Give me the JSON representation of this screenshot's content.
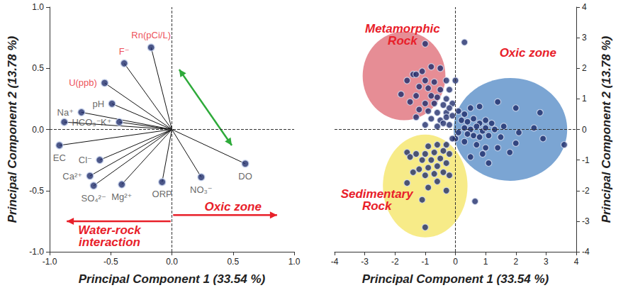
{
  "chart_data": [
    {
      "type": "biplot",
      "xlabel": "Principal Component 1 (33.54 %)",
      "ylabel": "Principal Component 2 (13.78 %)",
      "xlim": [
        -1,
        1
      ],
      "ylim": [
        -1,
        1
      ],
      "xticks": [
        {
          "value": -1,
          "label": "-1.0"
        },
        {
          "value": -0.5,
          "label": "-0.5"
        },
        {
          "value": 0,
          "label": "0.0"
        },
        {
          "value": 0.5,
          "label": "0.5"
        },
        {
          "value": 1,
          "label": "1.0"
        }
      ],
      "yticks": [
        {
          "value": -1,
          "label": "-1.0"
        },
        {
          "value": -0.5,
          "label": "-0.5"
        },
        {
          "value": 0,
          "label": "0.0"
        },
        {
          "value": 0.5,
          "label": "0.5"
        },
        {
          "value": 1,
          "label": "1.0"
        }
      ],
      "grid": false,
      "color": "#1f2d6b",
      "loadings": [
        {
          "name": "Rn(pCi/L)",
          "x": -0.17,
          "y": 0.67,
          "color": "#e8202a"
        },
        {
          "name": "F⁻",
          "x": -0.39,
          "y": 0.54,
          "color": "#e8202a"
        },
        {
          "name": "U(ppb)",
          "x": -0.55,
          "y": 0.38,
          "color": "#e8202a"
        },
        {
          "name": "pH",
          "x": -0.49,
          "y": 0.21,
          "color": "#404040"
        },
        {
          "name": "Na⁺",
          "x": -0.74,
          "y": 0.14,
          "color": "#404040"
        },
        {
          "name": "K⁺",
          "x": -0.43,
          "y": 0.06,
          "color": "#404040"
        },
        {
          "name": "HCO₃⁻",
          "x": -0.88,
          "y": 0.06,
          "color": "#404040"
        },
        {
          "name": "EC",
          "x": -0.92,
          "y": -0.13,
          "color": "#404040"
        },
        {
          "name": "Cl⁻",
          "x": -0.59,
          "y": -0.25,
          "color": "#404040"
        },
        {
          "name": "Ca²⁺",
          "x": -0.67,
          "y": -0.38,
          "color": "#404040"
        },
        {
          "name": "SO₄²⁻",
          "x": -0.64,
          "y": -0.46,
          "color": "#404040"
        },
        {
          "name": "Mg²⁺",
          "x": -0.41,
          "y": -0.45,
          "color": "#404040"
        },
        {
          "name": "ORP",
          "x": -0.08,
          "y": -0.43,
          "color": "#404040"
        },
        {
          "name": "NO₃⁻",
          "x": 0.24,
          "y": -0.39,
          "color": "#404040"
        },
        {
          "name": "DO",
          "x": 0.6,
          "y": -0.28,
          "color": "#404040"
        }
      ],
      "arrows": [
        {
          "from": [
            0.06,
            0.49
          ],
          "to": [
            0.49,
            -0.13
          ],
          "color": "#2eaa3a",
          "marker": "double"
        },
        {
          "from": [
            0.01,
            -0.7
          ],
          "to": [
            0.86,
            -0.7
          ],
          "color": "#e8202a",
          "marker": "single"
        },
        {
          "from": [
            -0.01,
            -0.75
          ],
          "to": [
            -0.86,
            -0.75
          ],
          "color": "#e8202a",
          "marker": "single"
        }
      ],
      "annotations": [
        {
          "text": "Oxic zone",
          "x": 0.5,
          "y": -0.63,
          "color": "#e8202a"
        },
        {
          "text": "Water-rock\ninteraction",
          "x": -0.51,
          "y": -0.87,
          "color": "#e8202a"
        }
      ]
    },
    {
      "type": "scatter",
      "xlabel": "Principal Component 1 (33.54 %)",
      "ylabel": "Principal Component 2 (13.78 %)",
      "xlim": [
        -4,
        4
      ],
      "ylim": [
        -4,
        4
      ],
      "xticks": [
        -4,
        -3,
        -2,
        -1,
        0,
        1,
        2,
        3,
        4
      ],
      "yticks": [
        -4,
        -3,
        -2,
        -1,
        0,
        1,
        2,
        3,
        4
      ],
      "grid": false,
      "color": "#1f2d6b",
      "x": [
        -1.0,
        0.3,
        -1.4,
        -1.3,
        -1.1,
        -0.8,
        -0.5,
        -1.6,
        -1.0,
        -0.7,
        -0.3,
        0.0,
        -1.2,
        -0.9,
        -0.5,
        -0.2,
        -1.8,
        -1.3,
        -0.8,
        -0.6,
        -0.3,
        -1.5,
        -1.0,
        -0.7,
        -0.4,
        -0.1,
        -1.2,
        -0.9,
        -0.6,
        -0.3,
        -0.2,
        -1.3,
        -0.8,
        -0.5,
        -0.3,
        -0.1,
        -1.0,
        -0.6,
        -0.4,
        -0.2,
        0.1,
        0.3,
        0.5,
        0.8,
        1.4,
        2.0,
        2.8,
        0.2,
        0.4,
        0.6,
        0.8,
        1.0,
        1.2,
        0.3,
        0.5,
        0.7,
        0.9,
        1.0,
        1.3,
        1.6,
        0.1,
        0.4,
        0.6,
        0.8,
        1.1,
        1.5,
        2.1,
        2.6,
        2.9,
        3.6,
        0.3,
        0.7,
        1.0,
        1.4,
        1.8,
        0.5,
        0.9,
        1.1,
        2.0,
        0.0,
        -0.1,
        -0.3,
        -0.6,
        -0.9,
        -0.4,
        -0.7,
        -1.0,
        -1.3,
        -1.6,
        -0.2,
        -0.5,
        -0.8,
        -1.1,
        -1.5,
        -0.3,
        -0.6,
        -0.9,
        -1.2,
        -0.4,
        -0.7,
        -1.0,
        -1.4,
        -0.2,
        -0.6,
        -1.6,
        -0.9,
        -0.3,
        -1.1,
        0.65,
        -1.0
      ],
      "y": [
        2.8,
        2.85,
        1.8,
        1.8,
        1.9,
        2.05,
        2.0,
        1.6,
        1.6,
        1.55,
        1.6,
        1.6,
        1.4,
        1.35,
        1.3,
        1.3,
        1.15,
        1.1,
        1.1,
        1.05,
        1.0,
        0.9,
        0.85,
        0.85,
        0.8,
        0.85,
        0.65,
        0.6,
        0.55,
        0.55,
        0.7,
        0.4,
        0.35,
        0.3,
        0.4,
        0.45,
        0.15,
        0.1,
        0.2,
        0.15,
        0.6,
        0.5,
        0.7,
        0.75,
        0.9,
        0.7,
        0.55,
        0.3,
        0.25,
        0.35,
        0.2,
        0.3,
        0.2,
        0.05,
        0.0,
        0.1,
        -0.05,
        0.05,
        0.0,
        0.1,
        -0.1,
        -0.15,
        -0.2,
        -0.25,
        -0.2,
        -0.25,
        -0.1,
        0.05,
        -0.3,
        -0.5,
        -0.4,
        -0.5,
        -0.6,
        -0.6,
        -0.75,
        -0.9,
        -0.8,
        -1.1,
        -0.45,
        -0.3,
        -0.3,
        -0.5,
        -0.5,
        -0.55,
        -0.7,
        -0.75,
        -0.8,
        -0.8,
        -0.75,
        -0.8,
        -0.95,
        -1.0,
        -1.0,
        -0.9,
        -1.1,
        -1.2,
        -1.25,
        -1.3,
        -1.4,
        -1.45,
        -1.5,
        -1.4,
        -1.5,
        -1.7,
        -1.75,
        -1.9,
        -2.0,
        -2.3,
        -2.35,
        -3.2
      ],
      "regions": [
        {
          "label": "Metamorphic\nRock",
          "color": "#e0707b",
          "center": [
            -1.7,
            1.75
          ],
          "radii": [
            1.37,
            1.45
          ],
          "label_at": [
            -1.75,
            3.1
          ]
        },
        {
          "label": "Oxic zone",
          "color": "#5a8fc8",
          "center": [
            1.82,
            0.0
          ],
          "radii": [
            1.88,
            1.68
          ],
          "label_at": [
            2.4,
            2.5
          ]
        },
        {
          "label": "Sedimentary\nRock",
          "color": "#f5e66a",
          "center": [
            -1.0,
            -1.85
          ],
          "radii": [
            1.4,
            1.68
          ],
          "label_at": [
            -2.6,
            -2.3
          ]
        }
      ]
    }
  ]
}
